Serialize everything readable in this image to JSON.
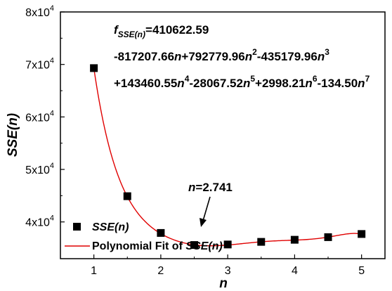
{
  "chart_data": {
    "type": "scatter",
    "xlabel": "n",
    "ylabel": "SSE(n)",
    "xlim": [
      0.5,
      5.35
    ],
    "ylim": [
      33000,
      80000
    ],
    "x_ticks": [
      {
        "v": 1,
        "label": "1"
      },
      {
        "v": 2,
        "label": "2"
      },
      {
        "v": 3,
        "label": "3"
      },
      {
        "v": 4,
        "label": "4"
      },
      {
        "v": 5,
        "label": "5"
      }
    ],
    "y_ticks": [
      {
        "v": 40000,
        "mant": "4x10",
        "exp": "4"
      },
      {
        "v": 50000,
        "mant": "5x10",
        "exp": "4"
      },
      {
        "v": 60000,
        "mant": "6x10",
        "exp": "4"
      },
      {
        "v": 70000,
        "mant": "7x10",
        "exp": "4"
      },
      {
        "v": 80000,
        "mant": "8x10",
        "exp": "4"
      }
    ],
    "series": [
      {
        "name": "SSE(n)",
        "kind": "points",
        "color": "#000000",
        "x": [
          1,
          1.5,
          2,
          2.5,
          3,
          3.5,
          4,
          4.5,
          5
        ],
        "y": [
          69300,
          44900,
          37900,
          35600,
          35700,
          36200,
          36600,
          37100,
          37700
        ]
      },
      {
        "name": "Polynomial Fit of SSE(n)",
        "kind": "line",
        "color": "#e00000",
        "coefficients": [
          410622.59,
          -817207.66,
          792779.96,
          -435179.96,
          143460.55,
          -28067.52,
          2998.21,
          -134.5
        ],
        "x_range": [
          1,
          5
        ]
      }
    ],
    "equation": {
      "line1_f": "f",
      "line1_sub": "SSE(n)",
      "line1_rest": "=410622.59",
      "line2": "-817207.66n+792779.96n2-435179.96n3",
      "line3": "+143460.55n4-28067.52n5+2998.21n6-134.50n7"
    },
    "annotation": {
      "text_var": "n",
      "text_rest": "=2.741",
      "x": 2.741
    },
    "legend": {
      "position": "bottom-left",
      "entry_points_name": "SSE",
      "entry_points_arg": "(n)",
      "entry_line_prefix": "Polynomial Fit of ",
      "entry_line_name": "SSE",
      "entry_line_arg": "(n)"
    },
    "grid": false
  }
}
